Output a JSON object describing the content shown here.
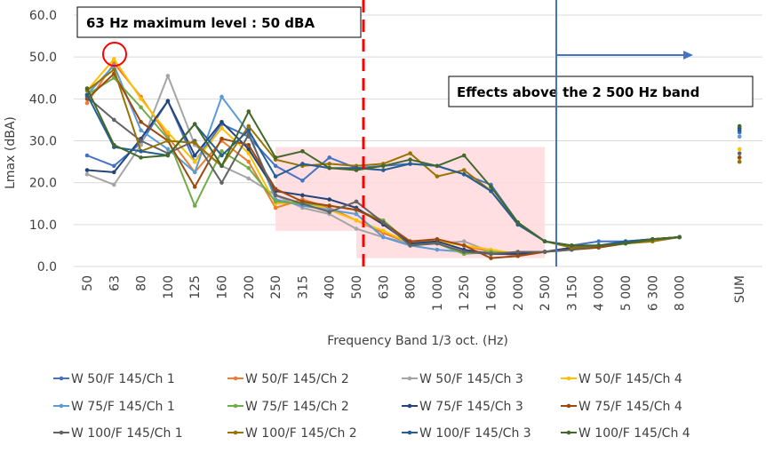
{
  "chart_data": {
    "type": "line",
    "title": "",
    "xlabel": "Frequency Band 1/3 oct. (Hz)",
    "ylabel": "Lmax (dBA)",
    "ylim": [
      0,
      60
    ],
    "yticks": [
      "0.0",
      "10.0",
      "20.0",
      "30.0",
      "40.0",
      "50.0",
      "60.0"
    ],
    "categories": [
      "50",
      "63",
      "80",
      "100",
      "125",
      "160",
      "200",
      "250",
      "315",
      "400",
      "500",
      "630",
      "800",
      "1 000",
      "1 250",
      "1 600",
      "2 000",
      "2 500",
      "3 150",
      "4 000",
      "5 000",
      "6 300",
      "8 000"
    ],
    "sum_label": "SUM",
    "grid": true,
    "legend_position": "bottom",
    "annotations": {
      "max_label": "63 Hz maximum level : 50 dBA",
      "effects_label": "Effects above the 2 500 Hz band"
    },
    "series": [
      {
        "name": "W 50/F 145/Ch 1",
        "color": "#4472c4",
        "values": [
          26.5,
          24,
          29.5,
          39.5,
          25,
          34,
          31,
          24,
          20.5,
          26,
          23.5,
          24,
          24.5,
          24,
          22,
          19.5,
          10.5,
          6,
          5,
          6,
          6,
          6.5,
          7
        ],
        "sum": 32
      },
      {
        "name": "W 50/F 145/Ch 2",
        "color": "#ed7d31",
        "values": [
          39,
          48.5,
          40.5,
          31,
          22.5,
          30,
          25,
          14,
          16,
          14,
          11,
          8,
          5.5,
          6.5,
          5,
          3.5,
          2.5,
          3.5,
          4.5,
          5,
          5.5,
          6.5,
          7
        ],
        "sum": 26
      },
      {
        "name": "W 50/F 145/Ch 3",
        "color": "#a5a5a5",
        "values": [
          22,
          19.5,
          29,
          45.5,
          29,
          24,
          21,
          17,
          14,
          12.5,
          9,
          7,
          5.5,
          5.5,
          6,
          3.5,
          3,
          3.5,
          4,
          5,
          5.5,
          6,
          7
        ],
        "sum": 26
      },
      {
        "name": "W 50/F 145/Ch 4",
        "color": "#ffc000",
        "values": [
          42,
          49.5,
          40,
          32,
          25,
          33,
          27,
          15,
          15.5,
          13.5,
          11,
          8.5,
          5.5,
          6,
          5,
          4,
          3,
          3.5,
          4,
          5,
          5.5,
          6.5,
          7
        ],
        "sum": 28
      },
      {
        "name": "W 75/F 145/Ch 1",
        "color": "#5b9bd5",
        "values": [
          41,
          48,
          32.5,
          28,
          22.5,
          40.5,
          32,
          16,
          14.5,
          13.5,
          12.5,
          7,
          5,
          4,
          3.5,
          3,
          3,
          3.5,
          4,
          5,
          5.5,
          6.5,
          7
        ],
        "sum": 31
      },
      {
        "name": "W 75/F 145/Ch 2",
        "color": "#70ad47",
        "values": [
          41,
          45,
          38,
          30.5,
          14.5,
          27.5,
          23.5,
          15.5,
          15,
          14.5,
          13.5,
          11,
          5.5,
          5.5,
          3,
          3.5,
          3,
          3.5,
          4,
          5,
          5.5,
          6.5,
          7
        ],
        "sum": 25
      },
      {
        "name": "W 75/F 145/Ch 3",
        "color": "#264478",
        "values": [
          23,
          22.5,
          30.5,
          39.5,
          26.5,
          34.5,
          28,
          18,
          17,
          16,
          14,
          10,
          5.5,
          6,
          4,
          3,
          3,
          3.5,
          4.5,
          5,
          5.5,
          6.5,
          7
        ],
        "sum": 33
      },
      {
        "name": "W 75/F 145/Ch 4",
        "color": "#9e480e",
        "values": [
          40,
          46,
          34.5,
          30,
          19,
          30.5,
          29,
          18.5,
          15.5,
          14.5,
          13.5,
          10.5,
          6,
          6.5,
          5,
          2,
          2.5,
          3.5,
          4,
          4.5,
          5.5,
          6.5,
          7
        ],
        "sum": 26
      },
      {
        "name": "W 100/F 145/Ch 1",
        "color": "#636363",
        "values": [
          40.5,
          35,
          30,
          27,
          30,
          20,
          31.5,
          17,
          15,
          13,
          15.5,
          10.5,
          5,
          5.5,
          3.5,
          3,
          3.5,
          3.5,
          4,
          5,
          5.5,
          6.5,
          7
        ],
        "sum": 27
      },
      {
        "name": "W 100/F 145/Ch 2",
        "color": "#997300",
        "values": [
          42,
          47,
          27.5,
          30,
          29.5,
          24,
          33.5,
          25.5,
          24,
          24.5,
          24,
          24.5,
          27,
          21.5,
          23,
          18,
          10,
          6,
          4.5,
          5,
          5.5,
          6,
          7
        ],
        "sum": 25
      },
      {
        "name": "W 100/F 145/Ch 3",
        "color": "#255e91",
        "values": [
          41,
          28.5,
          27.5,
          26.5,
          34,
          26.5,
          32.5,
          21.5,
          24.5,
          23.5,
          23.5,
          23,
          24.5,
          24,
          22,
          18,
          10,
          6,
          5,
          5,
          6,
          6.5,
          7
        ],
        "sum": 32.5
      },
      {
        "name": "W 100/F 145/Ch 4",
        "color": "#43682b",
        "values": [
          42.5,
          29,
          26,
          26.5,
          34,
          24,
          37,
          26,
          27.5,
          23.5,
          23,
          24,
          25.5,
          24,
          26.5,
          19,
          10.5,
          6,
          5,
          5,
          5.5,
          6.5,
          7
        ],
        "sum": 33.5
      }
    ]
  }
}
